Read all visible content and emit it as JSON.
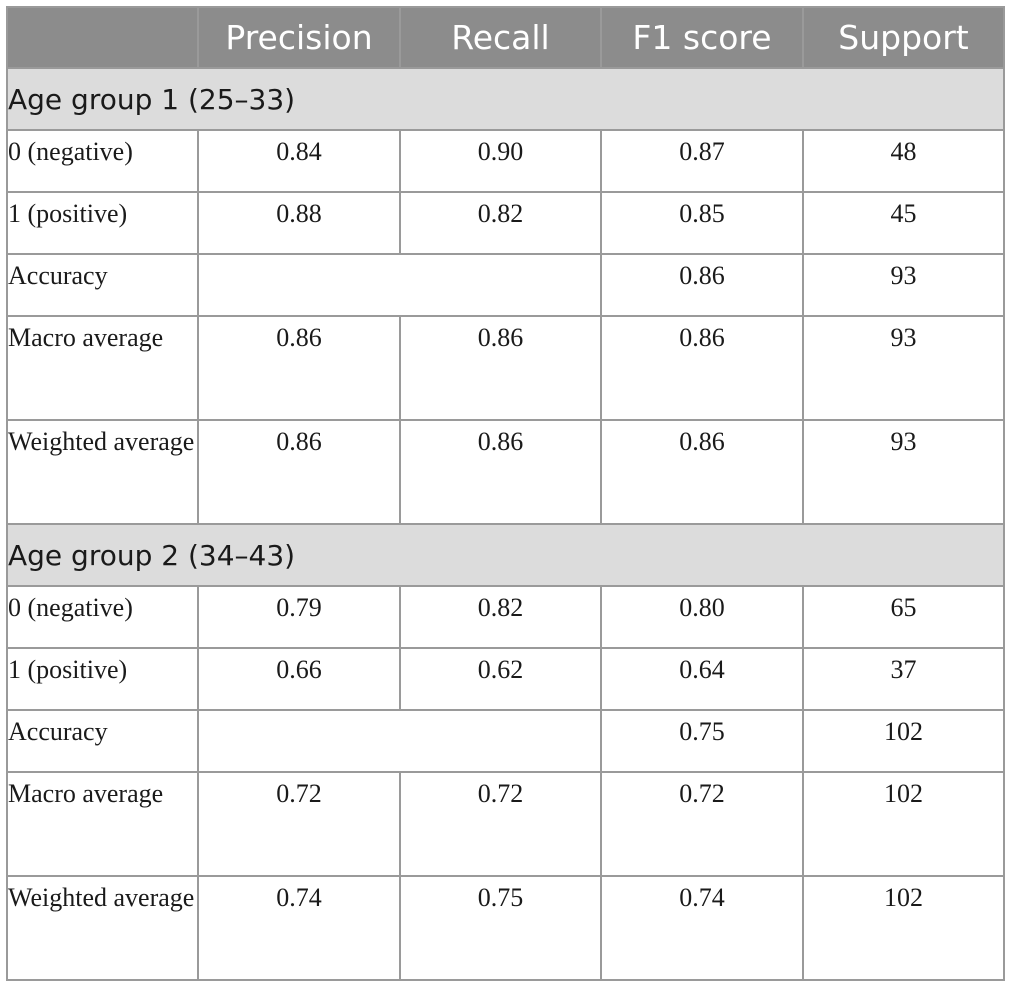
{
  "headers": [
    "",
    "Precision",
    "Recall",
    "F1 score",
    "Support"
  ],
  "groups": [
    {
      "title": "Age group 1 (25–33)",
      "rows": [
        {
          "label": "0 (negative)",
          "precision": "0.84",
          "recall": "0.90",
          "f1": "0.87",
          "support": "48"
        },
        {
          "label": "1 (positive)",
          "precision": "0.88",
          "recall": "0.82",
          "f1": "0.85",
          "support": "45"
        },
        {
          "label": "Accuracy",
          "f1": "0.86",
          "support": "93"
        },
        {
          "label": "Macro average",
          "precision": "0.86",
          "recall": "0.86",
          "f1": "0.86",
          "support": "93"
        },
        {
          "label": "Weighted average",
          "precision": "0.86",
          "recall": "0.86",
          "f1": "0.86",
          "support": "93"
        }
      ]
    },
    {
      "title": "Age group 2 (34–43)",
      "rows": [
        {
          "label": "0 (negative)",
          "precision": "0.79",
          "recall": "0.82",
          "f1": "0.80",
          "support": "65"
        },
        {
          "label": "1 (positive)",
          "precision": "0.66",
          "recall": "0.62",
          "f1": "0.64",
          "support": "37"
        },
        {
          "label": "Accuracy",
          "f1": "0.75",
          "support": "102"
        },
        {
          "label": "Macro average",
          "precision": "0.72",
          "recall": "0.72",
          "f1": "0.72",
          "support": "102"
        },
        {
          "label": "Weighted average",
          "precision": "0.74",
          "recall": "0.75",
          "f1": "0.74",
          "support": "102"
        }
      ]
    }
  ]
}
